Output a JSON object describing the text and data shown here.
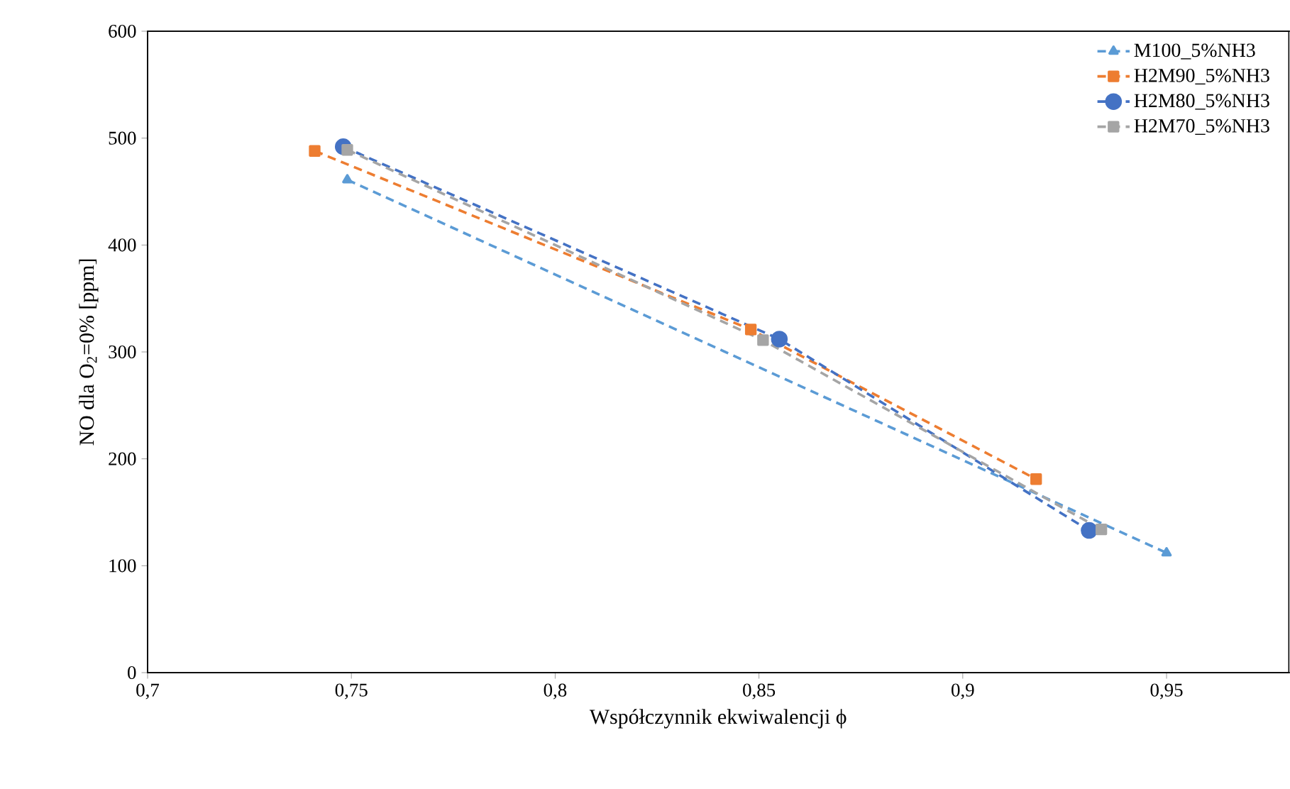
{
  "chart_data": {
    "type": "line",
    "xlabel": "Współczynnik ekwiwalencji ϕ",
    "ylabel": "NO dla O$_{2}$=0% [ppm]",
    "xlim": [
      0.7,
      0.98
    ],
    "ylim": [
      0,
      600
    ],
    "xticks": [
      {
        "value": 0.7,
        "label": "0,7"
      },
      {
        "value": 0.75,
        "label": "0,75"
      },
      {
        "value": 0.8,
        "label": "0,8"
      },
      {
        "value": 0.85,
        "label": "0,85"
      },
      {
        "value": 0.9,
        "label": "0,9"
      },
      {
        "value": 0.95,
        "label": "0,95"
      }
    ],
    "yticks": [
      0,
      100,
      200,
      300,
      400,
      500,
      600
    ],
    "grid": false,
    "legend": "top right",
    "line_style": "dashed",
    "series": [
      {
        "name": "M100_5%NH3",
        "color": "#5b9bd5",
        "marker": "triangle",
        "x": [
          0.749,
          0.95
        ],
        "values": [
          461,
          112
        ]
      },
      {
        "name": "H2M90_5%NH3",
        "color": "#ed7d31",
        "marker": "square",
        "x": [
          0.741,
          0.848,
          0.918
        ],
        "values": [
          488,
          321,
          181
        ]
      },
      {
        "name": "H2M80_5%NH3",
        "color": "#4472c4",
        "marker": "circle",
        "x": [
          0.748,
          0.855,
          0.931
        ],
        "values": [
          492,
          312,
          133
        ]
      },
      {
        "name": "H2M70_5%NH3",
        "color": "#a5a5a5",
        "marker": "square",
        "x": [
          0.749,
          0.851,
          0.934
        ],
        "values": [
          489,
          311,
          134
        ]
      }
    ]
  }
}
